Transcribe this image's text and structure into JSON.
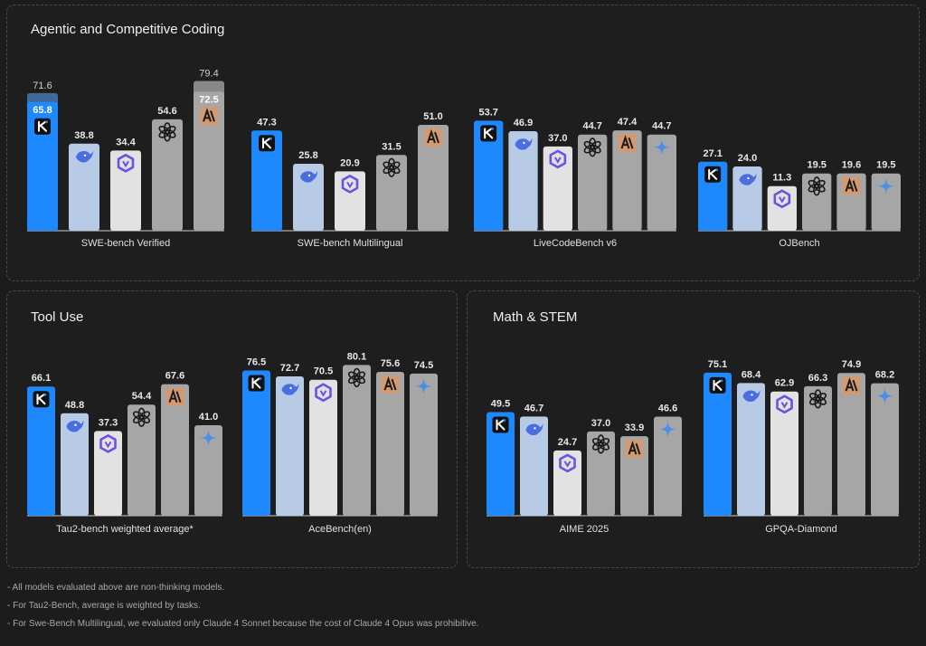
{
  "colors": {
    "kimi": "#1e88ff",
    "deepseek": "#b7cae6",
    "qwen": "#e2e2e2",
    "openai": "#a6a6a6",
    "claude": "#a6a6a6",
    "gemini": "#a6a6a6",
    "claude_badge": "#d39a72",
    "gemini_star": "#4d8fe8",
    "value_text": "#e8e8e8",
    "panel_border": "#4a4a4a",
    "baseline": "#cfcfcf"
  },
  "icons": {
    "kimi": "kimi-k-logo-icon",
    "deepseek": "deepseek-whale-icon",
    "qwen": "qwen-logo-icon",
    "openai": "openai-logo-icon",
    "claude": "anthropic-logo-icon",
    "gemini": "gemini-star-icon"
  },
  "panels": [
    {
      "title": "Agentic and Competitive Coding"
    },
    {
      "title": "Tool Use"
    },
    {
      "title": "Math & STEM"
    }
  ],
  "chart_data": [
    {
      "type": "bar",
      "title": "SWE-bench Verified",
      "bars": [
        {
          "model": "kimi",
          "value": 65.8,
          "secondary": 71.6
        },
        {
          "model": "deepseek",
          "value": 38.8
        },
        {
          "model": "qwen",
          "value": 34.4
        },
        {
          "model": "openai",
          "value": 54.6
        },
        {
          "model": "claude",
          "value": 72.5,
          "secondary": 79.4
        }
      ]
    },
    {
      "type": "bar",
      "title": "SWE-bench Multilingual",
      "bars": [
        {
          "model": "kimi",
          "value": 47.3
        },
        {
          "model": "deepseek",
          "value": 25.8
        },
        {
          "model": "qwen",
          "value": 20.9
        },
        {
          "model": "openai",
          "value": 31.5
        },
        {
          "model": "claude",
          "value": 51.0
        }
      ]
    },
    {
      "type": "bar",
      "title": "LiveCodeBench v6",
      "bars": [
        {
          "model": "kimi",
          "value": 53.7
        },
        {
          "model": "deepseek",
          "value": 46.9
        },
        {
          "model": "qwen",
          "value": 37.0
        },
        {
          "model": "openai",
          "value": 44.7
        },
        {
          "model": "claude",
          "value": 47.4
        },
        {
          "model": "gemini",
          "value": 44.7
        }
      ]
    },
    {
      "type": "bar",
      "title": "OJBench",
      "bars": [
        {
          "model": "kimi",
          "value": 27.1
        },
        {
          "model": "deepseek",
          "value": 24.0
        },
        {
          "model": "qwen",
          "value": 11.3
        },
        {
          "model": "openai",
          "value": 19.5
        },
        {
          "model": "claude",
          "value": 19.6
        },
        {
          "model": "gemini",
          "value": 19.5
        }
      ]
    },
    {
      "type": "bar",
      "title": "Tau2-bench weighted average*",
      "bars": [
        {
          "model": "kimi",
          "value": 66.1
        },
        {
          "model": "deepseek",
          "value": 48.8
        },
        {
          "model": "qwen",
          "value": 37.3
        },
        {
          "model": "openai",
          "value": 54.4
        },
        {
          "model": "claude",
          "value": 67.6
        },
        {
          "model": "gemini",
          "value": 41.0
        }
      ]
    },
    {
      "type": "bar",
      "title": "AceBench(en)",
      "bars": [
        {
          "model": "kimi",
          "value": 76.5
        },
        {
          "model": "deepseek",
          "value": 72.7
        },
        {
          "model": "qwen",
          "value": 70.5
        },
        {
          "model": "openai",
          "value": 80.1
        },
        {
          "model": "claude",
          "value": 75.6
        },
        {
          "model": "gemini",
          "value": 74.5
        }
      ]
    },
    {
      "type": "bar",
      "title": "AIME 2025",
      "bars": [
        {
          "model": "kimi",
          "value": 49.5
        },
        {
          "model": "deepseek",
          "value": 46.7
        },
        {
          "model": "qwen",
          "value": 24.7
        },
        {
          "model": "openai",
          "value": 37.0
        },
        {
          "model": "claude",
          "value": 33.9
        },
        {
          "model": "gemini",
          "value": 46.6
        }
      ]
    },
    {
      "type": "bar",
      "title": "GPQA-Diamond",
      "bars": [
        {
          "model": "kimi",
          "value": 75.1
        },
        {
          "model": "deepseek",
          "value": 68.4
        },
        {
          "model": "qwen",
          "value": 62.9
        },
        {
          "model": "openai",
          "value": 66.3
        },
        {
          "model": "claude",
          "value": 74.9
        },
        {
          "model": "gemini",
          "value": 68.2
        }
      ]
    }
  ],
  "footnotes": [
    "- All models evaluated above are non-thinking models.",
    "- For Tau2-Bench, average is weighted by tasks.",
    "- For Swe-Bench Multilingual, we evaluated only Claude 4 Sonnet because the cost of Claude 4 Opus was prohibitive."
  ]
}
